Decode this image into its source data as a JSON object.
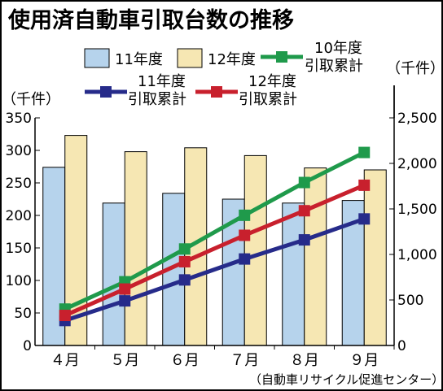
{
  "title": "使用済自動車引取台数の推移",
  "source": "（自動車リサイクル促進センター）",
  "left_unit": "（千件）",
  "right_unit": "（千件）",
  "colors": {
    "bar_11": "#b6d3ec",
    "bar_12": "#f6e7b3",
    "line_10": "#1f9a4b",
    "line_11": "#262b8a",
    "line_12": "#c8202d"
  },
  "legend": {
    "bar_11": "11年度",
    "bar_12": "12年度",
    "line_10": [
      "10年度",
      "引取累計"
    ],
    "line_11": [
      "11年度",
      "引取累計"
    ],
    "line_12": [
      "12年度",
      "引取累計"
    ]
  },
  "chart_data": {
    "type": "bar",
    "categories": [
      "４月",
      "５月",
      "６月",
      "７月",
      "８月",
      "９月"
    ],
    "bar_series": [
      {
        "name": "11年度",
        "values": [
          274,
          219,
          234,
          225,
          219,
          223
        ]
      },
      {
        "name": "12年度",
        "values": [
          323,
          298,
          304,
          292,
          273,
          270
        ]
      }
    ],
    "line_series": [
      {
        "name": "10年度引取累計",
        "values": [
          400,
          700,
          1060,
          1430,
          1790,
          2120
        ]
      },
      {
        "name": "11年度引取累計",
        "values": [
          274,
          490,
          720,
          950,
          1160,
          1390
        ]
      },
      {
        "name": "12年度引取累計",
        "values": [
          330,
          620,
          920,
          1210,
          1480,
          1760
        ]
      }
    ],
    "left_axis": {
      "ylim": [
        0,
        350
      ],
      "ticks": [
        0,
        50,
        100,
        150,
        200,
        250,
        300,
        350
      ]
    },
    "right_axis": {
      "ylim": [
        0,
        2500
      ],
      "ticks": [
        0,
        500,
        1000,
        1500,
        2000,
        2500
      ],
      "tick_labels": [
        "0",
        "500",
        "1,000",
        "1,500",
        "2,000",
        "2,500"
      ]
    },
    "grid": false,
    "legend_position": "top"
  }
}
